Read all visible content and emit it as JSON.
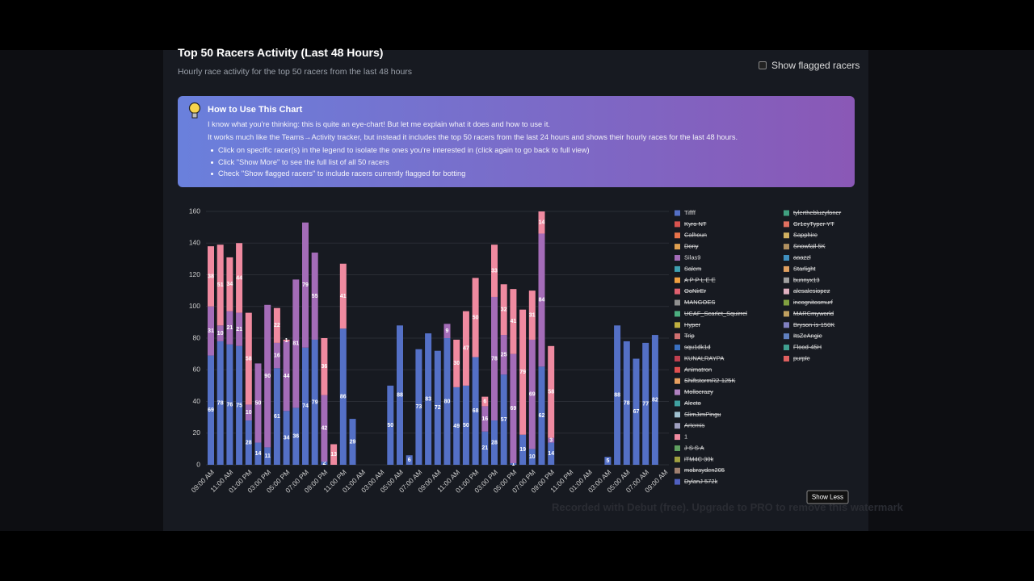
{
  "header": {
    "title": "Top 50 Racers Activity (Last 48 Hours)",
    "subtitle": "Hourly race activity for the top 50 racers from the last 48 hours",
    "checkbox_label": "Show flagged racers"
  },
  "info": {
    "title": "How to Use This Chart",
    "paragraphs": [
      "I know what you're thinking: this is quite an eye-chart! But let me explain what it does and how to use it.",
      "It works much like the Teams→Activity tracker, but instead it includes the top 50 racers from the last 24 hours and shows their hourly races for the last 48 hours."
    ],
    "bullets": [
      "Click on specific racer(s) in the legend to isolate the ones you're interested in (click again to go back to full view)",
      "Click \"Show More\" to see the full list of all 50 racers",
      "Check \"Show flagged racers\" to include racers currently flagged for botting"
    ]
  },
  "chart_data": {
    "type": "stacked_bar",
    "categories": [
      "09:00 AM",
      null,
      "11:00 AM",
      null,
      "01:00 PM",
      null,
      "03:00 PM",
      null,
      "05:00 PM",
      null,
      "07:00 PM",
      null,
      "09:00 PM",
      null,
      "11:00 PM",
      null,
      "01:00 AM",
      null,
      "03:00 AM",
      null,
      "05:00 AM",
      null,
      "07:00 AM",
      null,
      "09:00 AM",
      null,
      "11:00 AM",
      null,
      "01:00 PM",
      null,
      "03:00 PM",
      null,
      "05:00 PM",
      null,
      "07:00 PM",
      null,
      "09:00 PM",
      null,
      "11:00 PM",
      null,
      "01:00 AM",
      null,
      "03:00 AM",
      null,
      "05:00 AM",
      null,
      "07:00 AM",
      null,
      "09:00 AM"
    ],
    "ylim": [
      0,
      160
    ],
    "yticks": [
      0,
      20,
      40,
      60,
      80,
      100,
      120,
      140,
      160
    ],
    "grid": true,
    "legend_position": "right",
    "series": [
      {
        "name": "Tiffff",
        "color": "#5470c6",
        "hidden": false,
        "values": [
          69,
          78,
          76,
          75,
          28,
          14,
          11,
          61,
          34,
          36,
          74,
          79,
          2,
          0,
          86,
          29,
          0,
          0,
          0,
          50,
          88,
          6,
          73,
          83,
          72,
          80,
          49,
          50,
          68,
          21,
          28,
          57,
          1,
          19,
          10,
          62,
          14,
          0,
          0,
          0,
          0,
          0,
          5,
          88,
          78,
          67,
          77,
          82,
          0
        ]
      },
      {
        "name": "Kyro NT",
        "color": "#d9534f",
        "hidden": true
      },
      {
        "name": "Calhoun",
        "color": "#e8734a",
        "hidden": true
      },
      {
        "name": "Dony",
        "color": "#e0a050",
        "hidden": true
      },
      {
        "name": "Silas9",
        "color": "#a46cb8",
        "hidden": false,
        "values": [
          31,
          10,
          21,
          21,
          10,
          50,
          90,
          16,
          44,
          81,
          79,
          55,
          42,
          0,
          0,
          0,
          0,
          0,
          0,
          0,
          0,
          0,
          0,
          0,
          0,
          9,
          0,
          0,
          0,
          16,
          78,
          25,
          69,
          0,
          69,
          84,
          3,
          0,
          0,
          0,
          0,
          0,
          0,
          0,
          0,
          0,
          0,
          0,
          0
        ]
      },
      {
        "name": "Salem",
        "color": "#3fa0b0",
        "hidden": true
      },
      {
        "name": "A P P L E E",
        "color": "#f0a040",
        "hidden": true
      },
      {
        "name": "OoNirEr",
        "color": "#e06070",
        "hidden": true
      },
      {
        "name": "MANGOES",
        "color": "#909090",
        "hidden": true
      },
      {
        "name": "UCAF_Scarlet_Squirrel",
        "color": "#4caf80",
        "hidden": true
      },
      {
        "name": "Hyper",
        "color": "#c0b040",
        "hidden": true
      },
      {
        "name": "Trip",
        "color": "#d07070",
        "hidden": true
      },
      {
        "name": "squ1dk1d",
        "color": "#3a70c0",
        "hidden": true
      },
      {
        "name": "KUNALRAYPA",
        "color": "#c04050",
        "hidden": true
      },
      {
        "name": "Animatron",
        "color": "#e05050",
        "hidden": true
      },
      {
        "name": "ShiftstormR2-125K",
        "color": "#e8a060",
        "hidden": true
      },
      {
        "name": "Mollocrazy",
        "color": "#b080c0",
        "hidden": true
      },
      {
        "name": "Alecto",
        "color": "#40a0a0",
        "hidden": true
      },
      {
        "name": "SlimJimPingu",
        "color": "#a0c0d0",
        "hidden": true
      },
      {
        "name": "Artemis",
        "color": "#a0a0c0",
        "hidden": true
      },
      {
        "name": "1",
        "color": "#f08aa0",
        "hidden": false,
        "values": [
          38,
          51,
          34,
          44,
          58,
          0,
          0,
          22,
          1,
          0,
          0,
          0,
          36,
          13,
          41,
          0,
          0,
          0,
          0,
          0,
          0,
          0,
          0,
          0,
          0,
          0,
          30,
          47,
          50,
          6,
          33,
          32,
          41,
          79,
          31,
          14,
          58,
          0,
          0,
          0,
          0,
          0,
          0,
          0,
          0,
          0,
          0,
          0,
          0
        ]
      },
      {
        "name": "J S S A",
        "color": "#60a060",
        "hidden": true
      },
      {
        "name": "iTM4C 30k",
        "color": "#a0a040",
        "hidden": true
      },
      {
        "name": "mobrayden205",
        "color": "#a08070",
        "hidden": true
      },
      {
        "name": "DylanJ 572k",
        "color": "#5060c0",
        "hidden": true
      },
      {
        "name": "tylerthebluzyfoner",
        "color": "#40a080",
        "hidden": true
      },
      {
        "name": "Gr1eyTyper YT",
        "color": "#e07060",
        "hidden": true
      },
      {
        "name": "Sapphire",
        "color": "#d0b060",
        "hidden": true
      },
      {
        "name": "Snowfall 5K",
        "color": "#b09060",
        "hidden": true
      },
      {
        "name": "aaazzl",
        "color": "#4090c0",
        "hidden": true
      },
      {
        "name": "Starlight",
        "color": "#e0a060",
        "hidden": true
      },
      {
        "name": "bunnyx13",
        "color": "#a0a0a0",
        "hidden": true
      },
      {
        "name": "alesalesiopez",
        "color": "#e0b0c0",
        "hidden": true
      },
      {
        "name": "incognitosmurf",
        "color": "#80a040",
        "hidden": true
      },
      {
        "name": "MARCmyworld",
        "color": "#c0a060",
        "hidden": true
      },
      {
        "name": "Bryson-is-150K",
        "color": "#8080c0",
        "hidden": true
      },
      {
        "name": "ItsZeAngie",
        "color": "#6080c0",
        "hidden": true
      },
      {
        "name": "Flood-45H",
        "color": "#40a090",
        "hidden": true
      },
      {
        "name": "purple",
        "color": "#e06060",
        "hidden": true
      }
    ],
    "button_label": "Show Less"
  },
  "watermark": "Recorded with Debut (free). Upgrade to PRO to remove this watermark"
}
